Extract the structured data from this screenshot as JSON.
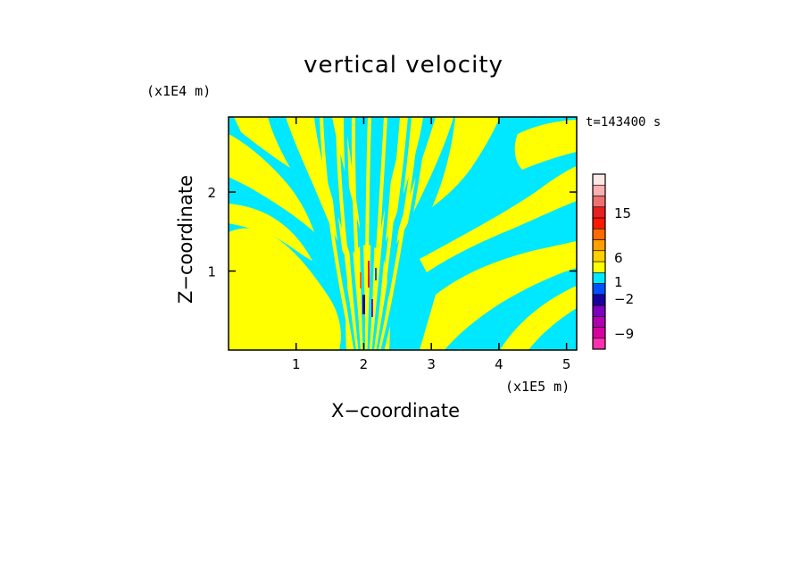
{
  "chart_data": {
    "type": "heatmap",
    "title": "vertical velocity",
    "xlabel": "X−coordinate",
    "ylabel": "Z−coordinate",
    "x_unit": "(x1E5 m)",
    "z_unit": "(x1E4 m)",
    "time_label": "t=143400 s",
    "xlim": [
      0,
      5.15
    ],
    "ylim": [
      0,
      2.95
    ],
    "x_ticks": [
      1,
      2,
      3,
      4,
      5
    ],
    "x_tick_labels": [
      "1",
      "2",
      "3",
      "4",
      "5"
    ],
    "y_ticks": [
      1,
      2
    ],
    "y_tick_labels": [
      "1",
      "2"
    ],
    "colorbar": {
      "colors": [
        "#ff30b0",
        "#d800a0",
        "#b000b0",
        "#8000c0",
        "#1800a0",
        "#0050ff",
        "#00e8ff",
        "#ffff00",
        "#ffd000",
        "#ffa000",
        "#ff6a00",
        "#ff1800",
        "#e82020",
        "#f07070",
        "#f8b0b0",
        "#fde8e8"
      ],
      "tick_levels": [
        15,
        6,
        1,
        -2,
        -9
      ],
      "tick_labels": [
        "15",
        "6",
        "1",
        "−2",
        "−9"
      ]
    },
    "dominant_colors": {
      "positive": "#ffff00",
      "negative": "#00e8ff"
    }
  }
}
